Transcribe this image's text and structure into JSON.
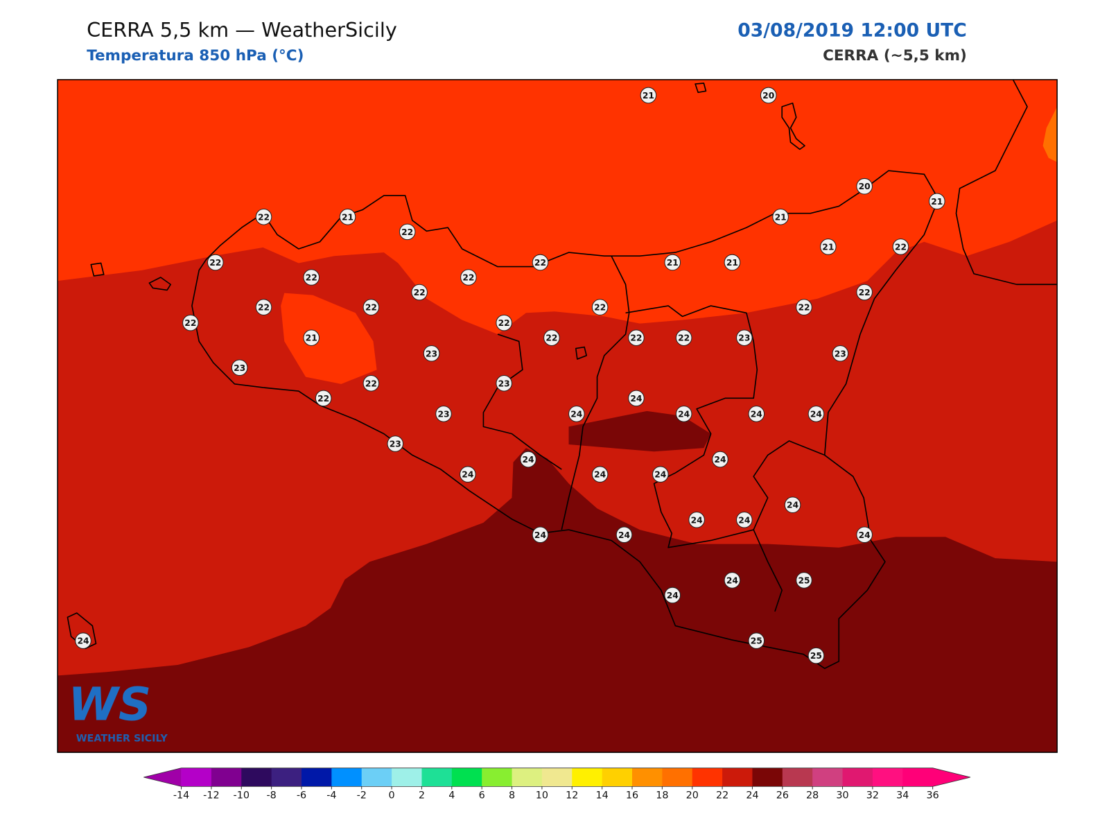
{
  "header": {
    "title": "CERRA 5,5 km — WeatherSicily",
    "subtitle": "Temperatura 850 hPa (°C)",
    "date": "03/08/2019 12:00 UTC",
    "model": "CERRA (~5,5 km)"
  },
  "logo": {
    "mark": "WS",
    "text": "WEATHER SICILY"
  },
  "stations": {
    "values": [
      21,
      20,
      20,
      21,
      22,
      21,
      22,
      21,
      21,
      22,
      22,
      22,
      22,
      22,
      21,
      21,
      22,
      22,
      22,
      22,
      22,
      22,
      22,
      22,
      21,
      22,
      22,
      22,
      23,
      23,
      23,
      23,
      22,
      23,
      22,
      24,
      23,
      24,
      24,
      24,
      24,
      23,
      24,
      24,
      24,
      24,
      24,
      24,
      24,
      24,
      24,
      24,
      24,
      24,
      25,
      24,
      25,
      25,
      24
    ]
  },
  "colorbar": {
    "ticks": [
      -14,
      -12,
      -10,
      -8,
      -6,
      -4,
      -2,
      0,
      2,
      4,
      6,
      8,
      10,
      12,
      14,
      16,
      18,
      20,
      22,
      24,
      26,
      28,
      30,
      32,
      34,
      36
    ],
    "colors": [
      "#b400c8",
      "#800090",
      "#2e0a5e",
      "#3c2080",
      "#0018a8",
      "#0090ff",
      "#6ccff6",
      "#9ef0e8",
      "#1ee096",
      "#00e050",
      "#88ee30",
      "#ddf080",
      "#f0e890",
      "#fff000",
      "#ffd000",
      "#ff9000",
      "#ff7000",
      "#ff3300",
      "#cc1a0a",
      "#7a0606",
      "#b83850",
      "#d04080",
      "#e01870",
      "#ff1080",
      "#ff0078"
    ],
    "under_color": "#a000a8",
    "over_color": "#ff0078"
  }
}
